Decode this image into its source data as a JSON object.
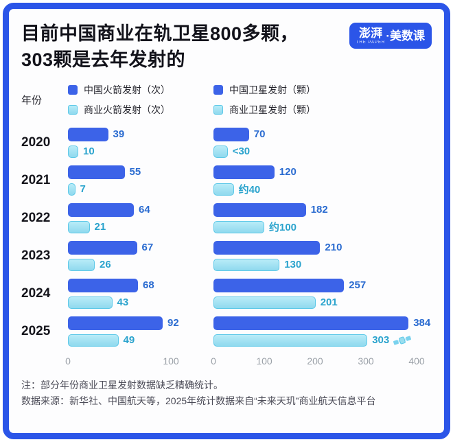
{
  "header": {
    "title_line1": "目前中国商业在轨卫星800多颗，",
    "title_line2": "303颗是去年发射的",
    "logo_brand": "澎湃",
    "logo_brand_en": "THE PAPER",
    "logo_product": "·美数课"
  },
  "colors": {
    "frame_blue": "#2b55e8",
    "dark_bar": "#3c63e8",
    "light_bar": "#8fd9ee",
    "light_bar_border": "#5cc8e8",
    "dark_value_label": "#2a6bd0",
    "light_value_label": "#2aa3cd",
    "axis_tick": "#9ba1a8"
  },
  "ylabel": "年份",
  "legend": {
    "left": [
      {
        "label": "中国火箭发射（次）",
        "type": "dark"
      },
      {
        "label": "商业火箭发射（次）",
        "type": "light"
      }
    ],
    "right": [
      {
        "label": "中国卫星发射（颗）",
        "type": "dark"
      },
      {
        "label": "商业卫星发射（颗）",
        "type": "light"
      }
    ]
  },
  "chart_data": [
    {
      "type": "bar",
      "title": "中国/商业火箭发射（次）",
      "orientation": "horizontal",
      "categories": [
        "2020",
        "2021",
        "2022",
        "2023",
        "2024",
        "2025"
      ],
      "series": [
        {
          "name": "中国火箭发射（次）",
          "values": [
            39,
            55,
            64,
            67,
            68,
            92
          ],
          "labels": [
            "39",
            "55",
            "64",
            "67",
            "68",
            "92"
          ]
        },
        {
          "name": "商业火箭发射（次）",
          "values": [
            10,
            7,
            21,
            26,
            43,
            49
          ],
          "labels": [
            "10",
            "7",
            "21",
            "26",
            "43",
            "49"
          ]
        }
      ],
      "xlim": [
        0,
        100
      ],
      "ticks": [
        "0",
        "100"
      ],
      "grid": false,
      "legend_position": "top"
    },
    {
      "type": "bar",
      "title": "中国/商业卫星发射（颗）",
      "orientation": "horizontal",
      "categories": [
        "2020",
        "2021",
        "2022",
        "2023",
        "2024",
        "2025"
      ],
      "series": [
        {
          "name": "中国卫星发射（颗）",
          "values": [
            70,
            120,
            182,
            210,
            257,
            384
          ],
          "labels": [
            "70",
            "120",
            "182",
            "210",
            "257",
            "384"
          ]
        },
        {
          "name": "商业卫星发射（颗）",
          "values": [
            28,
            40,
            100,
            130,
            201,
            303
          ],
          "labels": [
            "<30",
            "约40",
            "约100",
            "130",
            "201",
            "303"
          ]
        }
      ],
      "xlim": [
        0,
        400
      ],
      "ticks": [
        "0",
        "100",
        "200",
        "300",
        "400"
      ],
      "grid": false,
      "legend_position": "top"
    }
  ],
  "notes": {
    "line1": "注：部分年份商业卫星发射数据缺乏精确统计。",
    "line2": "数据来源：新华社、中国航天等，2025年统计数据来自“未来天玑”商业航天信息平台"
  }
}
